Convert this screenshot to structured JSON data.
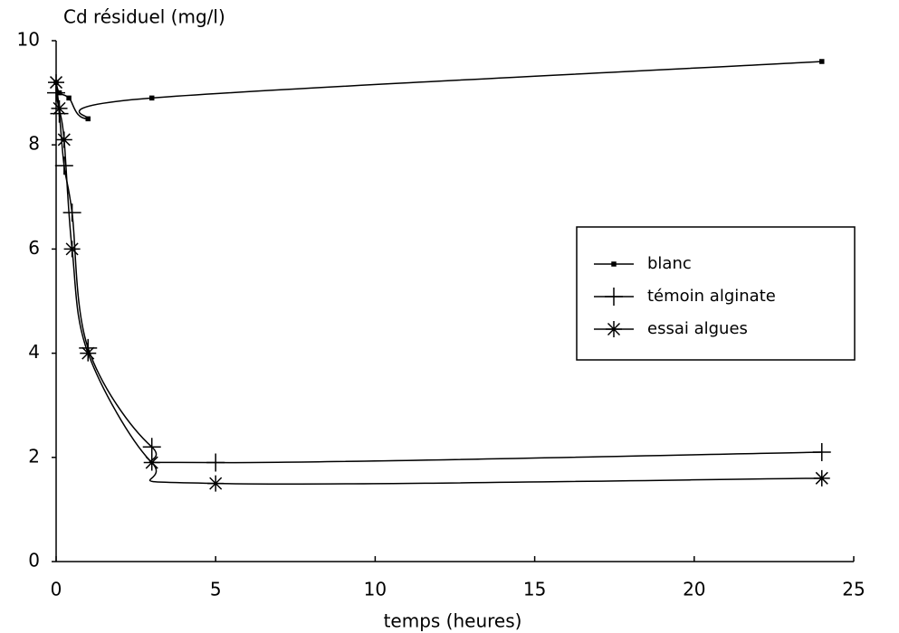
{
  "chart_data": {
    "type": "line",
    "ylabel": "Cd résiduel (mg/l)",
    "xlabel": "temps (heures)",
    "xlim": [
      0,
      25
    ],
    "xticks": [
      0,
      5,
      10,
      15,
      20,
      25
    ],
    "ylim": [
      0,
      10
    ],
    "yticks": [
      0,
      2,
      4,
      6,
      8,
      10
    ],
    "legend": "center right",
    "series": [
      {
        "name": "blanc",
        "color": "#000000",
        "marker": "square",
        "x": [
          0,
          0.1,
          0.4,
          1,
          3,
          24
        ],
        "values": [
          9.2,
          9.0,
          8.9,
          8.5,
          8.9,
          9.6
        ]
      },
      {
        "name": "témoin alginate",
        "color": "#000000",
        "marker": "plus",
        "x": [
          0,
          0.1,
          0.25,
          0.5,
          1,
          3,
          5,
          24
        ],
        "values": [
          9.0,
          8.6,
          7.6,
          6.7,
          4.1,
          2.2,
          1.9,
          2.1
        ]
      },
      {
        "name": "essai algues",
        "color": "#000000",
        "marker": "star",
        "x": [
          0,
          0.1,
          0.25,
          0.5,
          1,
          3,
          5,
          24
        ],
        "values": [
          9.2,
          8.7,
          8.1,
          6.0,
          4.0,
          1.9,
          1.5,
          1.6
        ]
      }
    ]
  }
}
